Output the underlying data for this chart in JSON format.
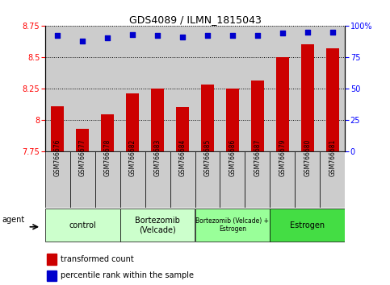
{
  "title": "GDS4089 / ILMN_1815043",
  "samples": [
    "GSM766676",
    "GSM766677",
    "GSM766678",
    "GSM766682",
    "GSM766683",
    "GSM766684",
    "GSM766685",
    "GSM766686",
    "GSM766687",
    "GSM766679",
    "GSM766680",
    "GSM766681"
  ],
  "bar_values": [
    8.11,
    7.93,
    8.04,
    8.21,
    8.25,
    8.1,
    8.28,
    8.25,
    8.31,
    8.5,
    8.6,
    8.57
  ],
  "dot_values": [
    92,
    88,
    90,
    93,
    92,
    91,
    92,
    92,
    92,
    94,
    95,
    95
  ],
  "bar_color": "#cc0000",
  "dot_color": "#0000cc",
  "ylim_left": [
    7.75,
    8.75
  ],
  "ylim_right": [
    0,
    100
  ],
  "yticks_left": [
    7.75,
    8.0,
    8.25,
    8.5,
    8.75
  ],
  "yticks_right": [
    0,
    25,
    50,
    75,
    100
  ],
  "groups": [
    {
      "label": "control",
      "start": 0,
      "end": 3,
      "color": "#ccffcc"
    },
    {
      "label": "Bortezomib\n(Velcade)",
      "start": 3,
      "end": 6,
      "color": "#ccffcc"
    },
    {
      "label": "Bortezomib (Velcade) +\nEstrogen",
      "start": 6,
      "end": 9,
      "color": "#99ff99"
    },
    {
      "label": "Estrogen",
      "start": 9,
      "end": 12,
      "color": "#44dd44"
    }
  ],
  "agent_label": "agent",
  "legend_bar": "transformed count",
  "legend_dot": "percentile rank within the sample",
  "sample_bg_color": "#cccccc",
  "plot_bg": "#ffffff"
}
